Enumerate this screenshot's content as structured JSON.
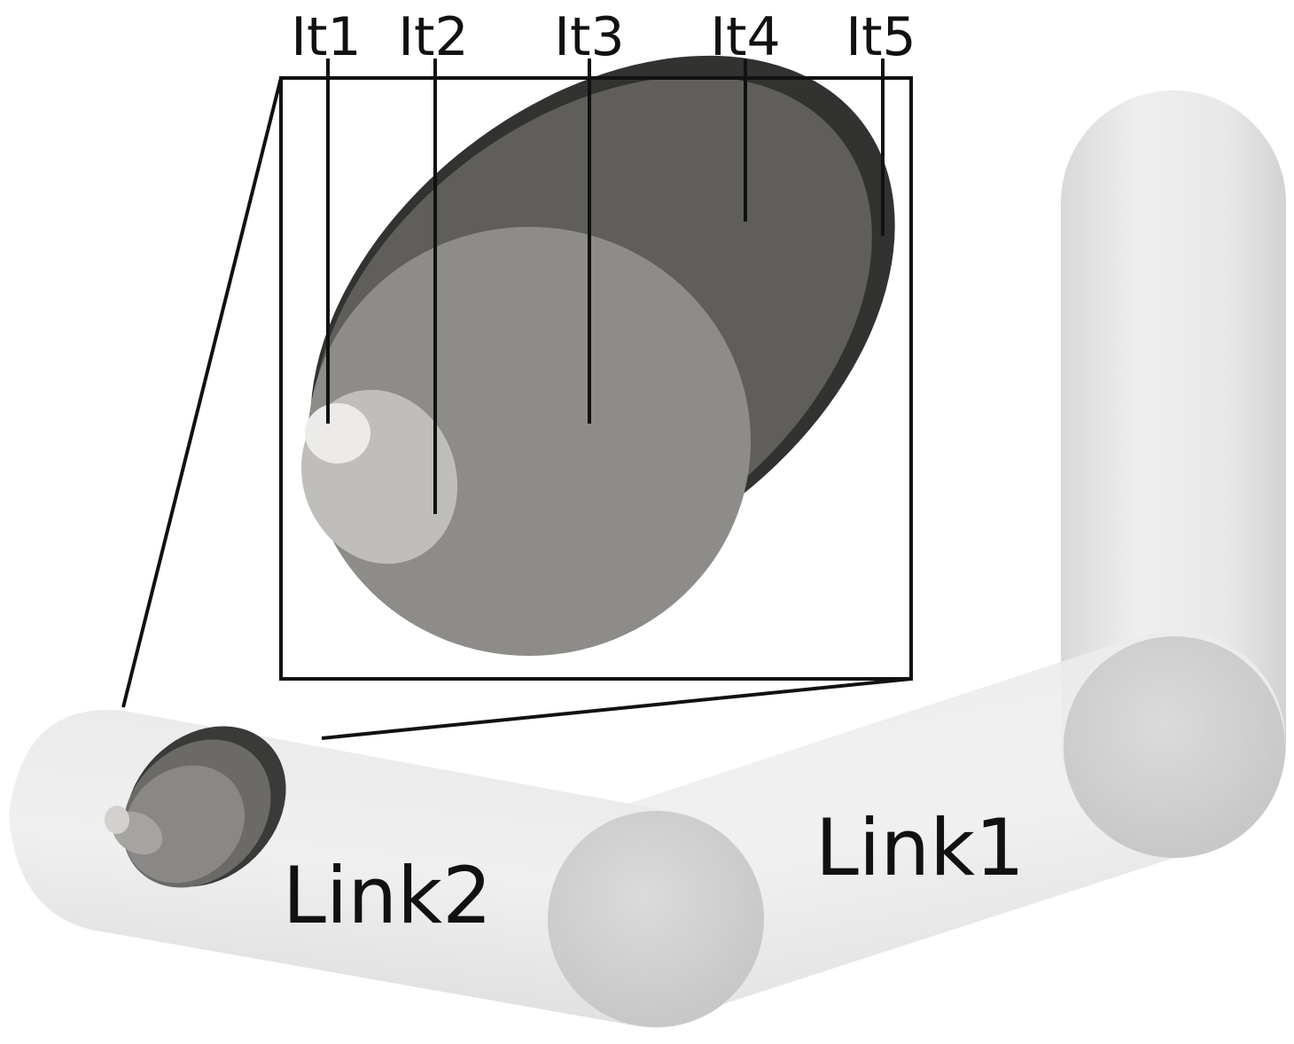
{
  "iterations": [
    {
      "label": "It1"
    },
    {
      "label": "It2"
    },
    {
      "label": "It3"
    },
    {
      "label": "It4"
    },
    {
      "label": "It5"
    }
  ],
  "links": [
    {
      "label": "Link1"
    },
    {
      "label": "Link2"
    }
  ],
  "colors": {
    "background": "#ffffff",
    "link_fill": "#e4e4e4",
    "joint_sphere": "#cfcfcf",
    "it1": "#ecebea",
    "it2": "#bfbebb",
    "it3": "#8e8c89",
    "it4": "#5f5e5b",
    "it5": "#323230",
    "leader_line": "#111111"
  }
}
